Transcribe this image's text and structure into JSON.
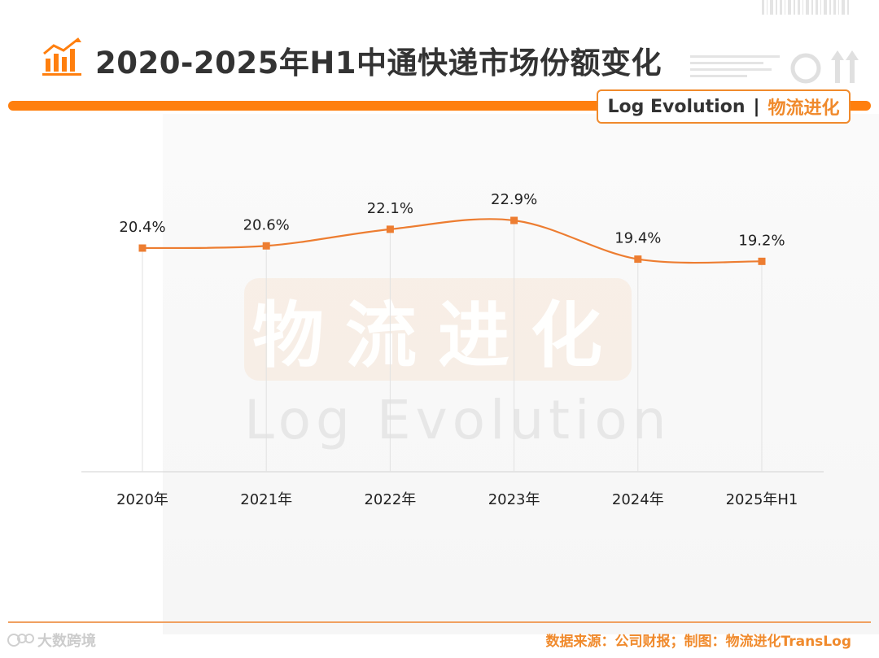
{
  "header": {
    "title": "2020-2025年H1中通快递市场份额变化",
    "brand_en": "Log Evolution",
    "brand_sep": "|",
    "brand_cn": "物流进化"
  },
  "watermark": {
    "cn": "物流进化",
    "en": "Log Evolution"
  },
  "footer": {
    "source": "数据来源：公司财报；制图：物流进化TransLog",
    "mark": "大数跨境"
  },
  "colors": {
    "accent": "#ff7f0e",
    "line": "#ed7d31",
    "title_text": "#333333"
  },
  "chart_data": {
    "type": "line",
    "title": "2020-2025年H1中通快递市场份额变化",
    "categories": [
      "2020年",
      "2021年",
      "2022年",
      "2023年",
      "2024年",
      "2025年H1"
    ],
    "series": [
      {
        "name": "中通快递市场份额",
        "values": [
          20.4,
          20.6,
          22.1,
          22.9,
          19.4,
          19.2
        ],
        "labels": [
          "20.4%",
          "20.6%",
          "22.1%",
          "22.9%",
          "19.4%",
          "19.2%"
        ]
      }
    ],
    "ylim": [
      0,
      25
    ],
    "xlabel": "",
    "ylabel": "",
    "smooth": true,
    "markers": "square",
    "drop_lines": true
  }
}
